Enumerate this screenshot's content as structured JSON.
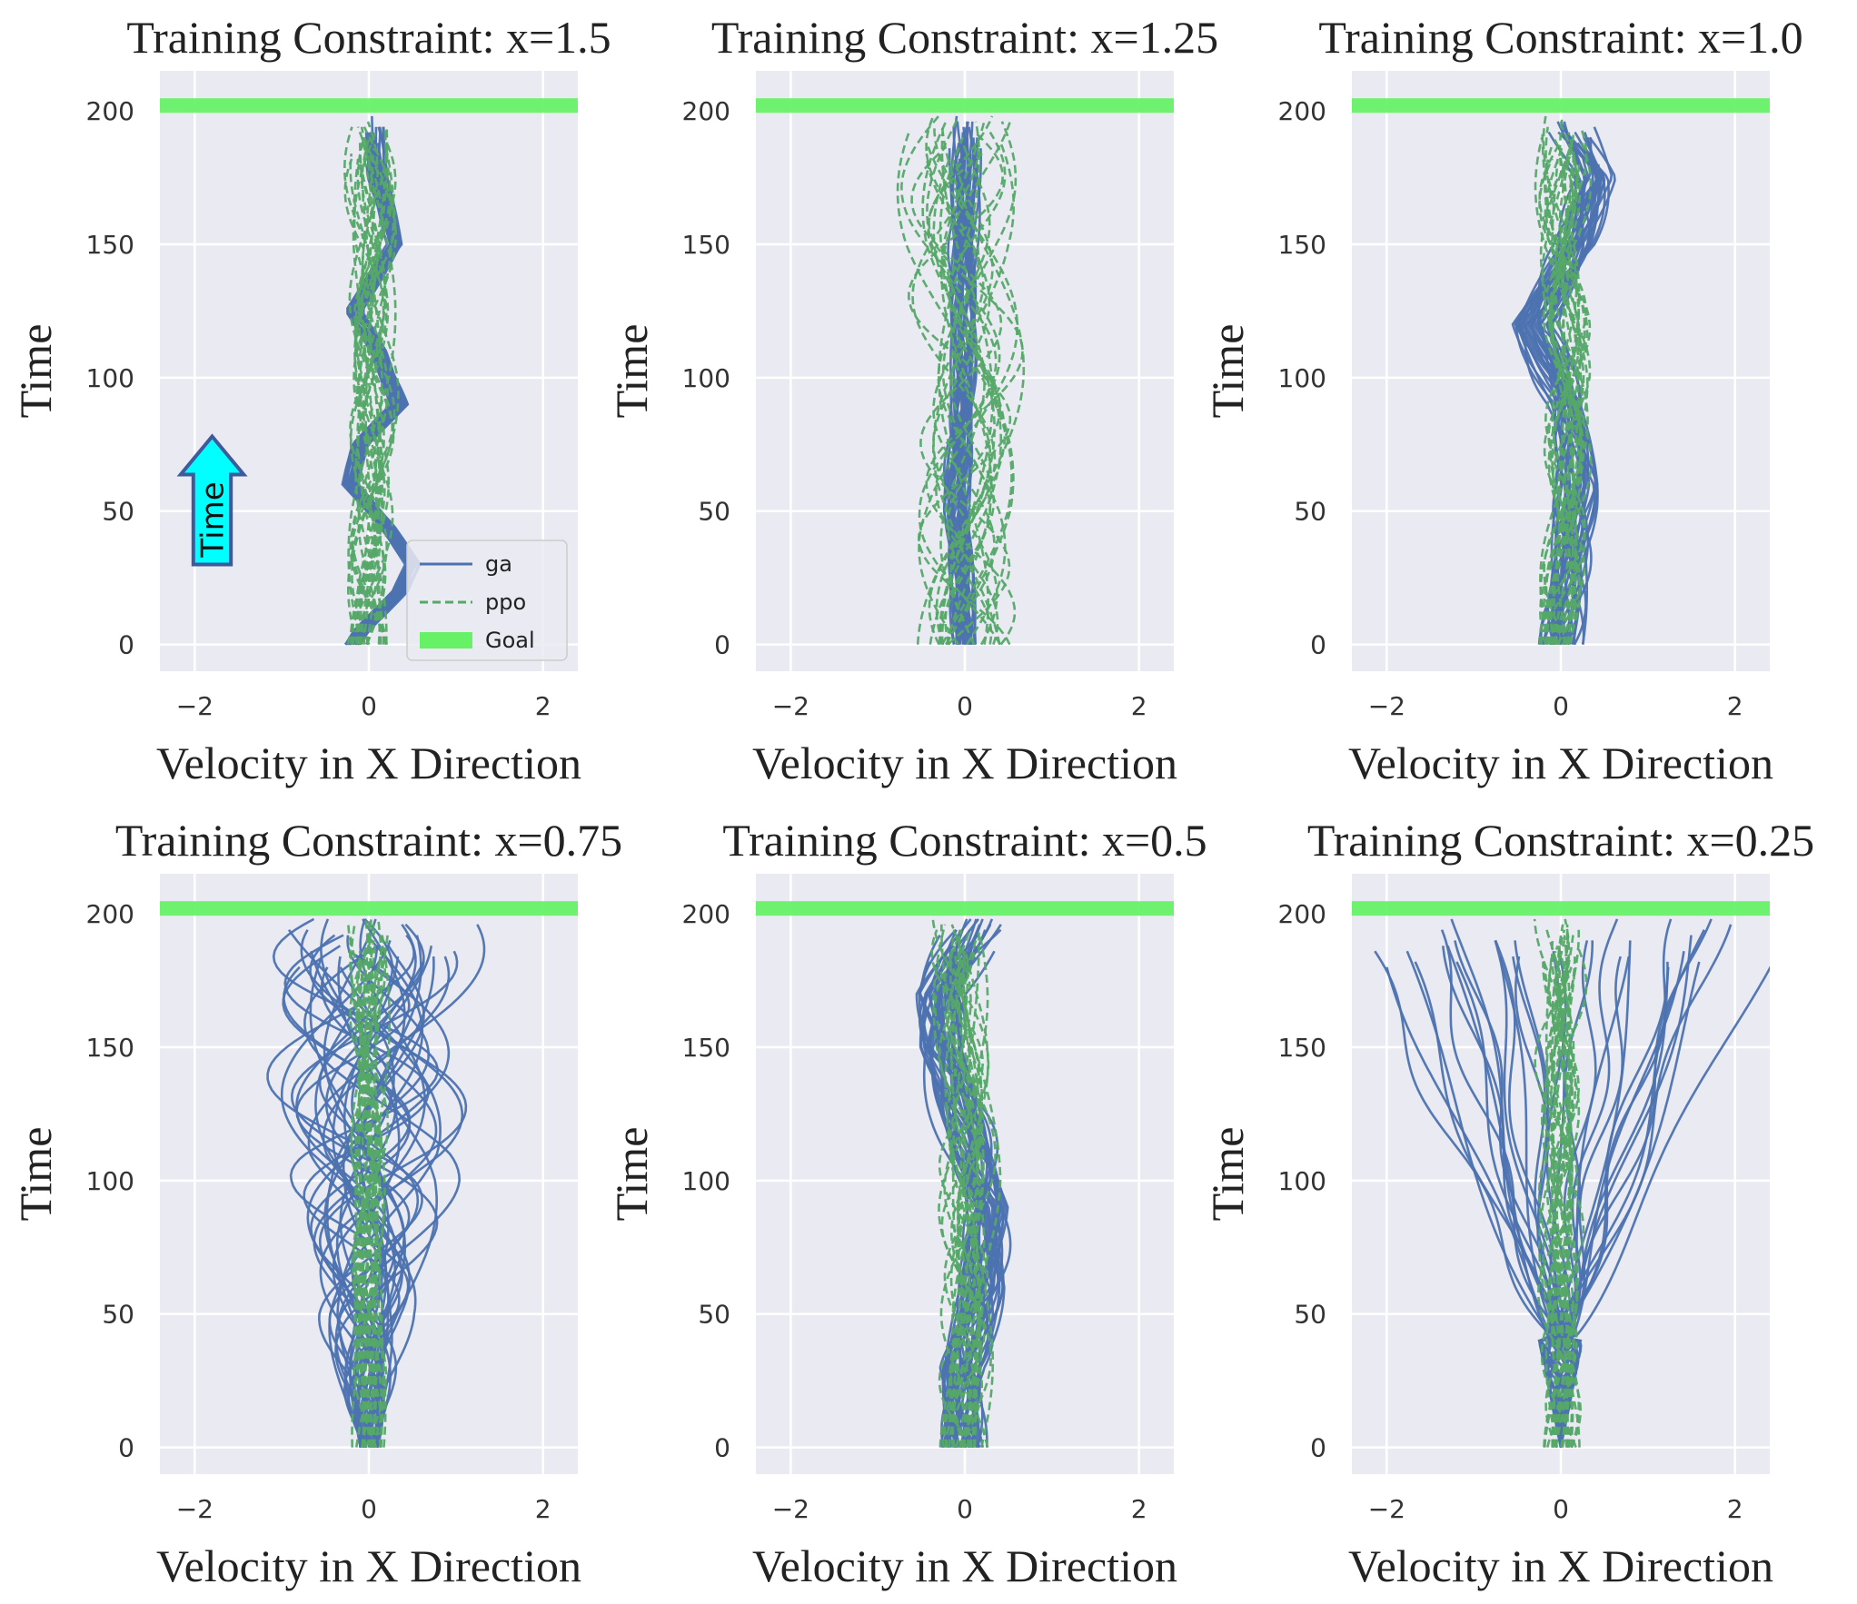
{
  "chart_data": [
    {
      "type": "line",
      "title": "Training Constraint: x=1.5",
      "xlabel": "Velocity in X Direction",
      "ylabel": "Time",
      "xlim": [
        -2.4,
        2.4
      ],
      "ylim": [
        -10,
        215
      ],
      "xticks": [
        -2,
        0,
        2
      ],
      "yticks": [
        0,
        50,
        100,
        150,
        200
      ],
      "grid": true,
      "goal_y": 202,
      "legend": {
        "position": "lower-right",
        "entries": [
          "ga",
          "ppo",
          "Goal"
        ]
      },
      "annotation": {
        "text": "Time",
        "shape": "up-arrow",
        "y_range": [
          30,
          78
        ],
        "x_range": [
          -2.1,
          -1.5
        ]
      },
      "series": [
        {
          "name": "ga",
          "style": "solid",
          "color": "#4c72b0",
          "count": 30,
          "spread": 0.08,
          "center": [
            [
              0,
              -0.2
            ],
            [
              5,
              -0.1
            ],
            [
              20,
              0.35
            ],
            [
              30,
              0.5
            ],
            [
              45,
              0.2
            ],
            [
              60,
              -0.2
            ],
            [
              75,
              -0.1
            ],
            [
              90,
              0.35
            ],
            [
              110,
              0.1
            ],
            [
              125,
              -0.2
            ],
            [
              150,
              0.3
            ],
            [
              175,
              0.1
            ],
            [
              200,
              0.05
            ]
          ]
        },
        {
          "name": "ppo",
          "style": "dashed",
          "color": "#55a868",
          "count": 25,
          "spread": 0.2,
          "center": [
            [
              0,
              0.0
            ],
            [
              50,
              0.0
            ],
            [
              100,
              0.05
            ],
            [
              150,
              0.0
            ],
            [
              200,
              0.0
            ]
          ]
        },
        {
          "name": "Goal",
          "style": "band",
          "color": "#67f167"
        }
      ]
    },
    {
      "type": "line",
      "title": "Training Constraint: x=1.25",
      "xlabel": "Velocity in X Direction",
      "ylabel": "Time",
      "xlim": [
        -2.4,
        2.4
      ],
      "ylim": [
        -10,
        215
      ],
      "xticks": [
        -2,
        0,
        2
      ],
      "yticks": [
        0,
        50,
        100,
        150,
        200
      ],
      "grid": true,
      "goal_y": 202,
      "series": [
        {
          "name": "ga",
          "style": "solid",
          "color": "#4c72b0",
          "count": 30,
          "spread": 0.12,
          "center": [
            [
              0,
              0.0
            ],
            [
              50,
              -0.1
            ],
            [
              100,
              0.0
            ],
            [
              150,
              0.0
            ],
            [
              200,
              0.0
            ]
          ]
        },
        {
          "name": "ppo",
          "style": "dashed",
          "color": "#55a868",
          "count": 25,
          "spread": 0.45,
          "center": [
            [
              0,
              0.0
            ],
            [
              50,
              0.05
            ],
            [
              100,
              0.0
            ],
            [
              150,
              -0.05
            ],
            [
              200,
              0.0
            ]
          ]
        },
        {
          "name": "Goal",
          "style": "band",
          "color": "#67f167"
        }
      ]
    },
    {
      "type": "line",
      "title": "Training Constraint: x=1.0",
      "xlabel": "Velocity in X Direction",
      "ylabel": "Time",
      "xlim": [
        -2.4,
        2.4
      ],
      "ylim": [
        -10,
        215
      ],
      "xticks": [
        -2,
        0,
        2
      ],
      "yticks": [
        0,
        50,
        100,
        150,
        200
      ],
      "grid": true,
      "goal_y": 202,
      "series": [
        {
          "name": "ga",
          "style": "solid",
          "color": "#4c72b0",
          "count": 30,
          "spread": 0.2,
          "center": [
            [
              0,
              0.0
            ],
            [
              30,
              0.1
            ],
            [
              60,
              0.2
            ],
            [
              90,
              0.1
            ],
            [
              120,
              -0.3
            ],
            [
              150,
              0.2
            ],
            [
              175,
              0.4
            ],
            [
              200,
              0.0
            ]
          ]
        },
        {
          "name": "ppo",
          "style": "dashed",
          "color": "#55a868",
          "count": 25,
          "spread": 0.2,
          "center": [
            [
              0,
              0.0
            ],
            [
              50,
              0.05
            ],
            [
              100,
              0.1
            ],
            [
              150,
              0.05
            ],
            [
              200,
              0.0
            ]
          ]
        },
        {
          "name": "Goal",
          "style": "band",
          "color": "#67f167"
        }
      ]
    },
    {
      "type": "line",
      "title": "Training Constraint: x=0.75",
      "xlabel": "Velocity in X Direction",
      "ylabel": "Time",
      "xlim": [
        -2.4,
        2.4
      ],
      "ylim": [
        -10,
        215
      ],
      "xticks": [
        -2,
        0,
        2
      ],
      "yticks": [
        0,
        50,
        100,
        150,
        200
      ],
      "grid": true,
      "goal_y": 202,
      "series": [
        {
          "name": "ga",
          "style": "solid",
          "color": "#4c72b0",
          "count": 36,
          "spread": 0.75,
          "spread_start": 0.1,
          "center": [
            [
              0,
              0.0
            ],
            [
              50,
              -0.05
            ],
            [
              100,
              0.05
            ],
            [
              150,
              0.0
            ],
            [
              200,
              0.0
            ]
          ]
        },
        {
          "name": "ppo",
          "style": "dashed",
          "color": "#55a868",
          "count": 25,
          "spread": 0.15,
          "center": [
            [
              0,
              0.0
            ],
            [
              50,
              0.0
            ],
            [
              100,
              0.0
            ],
            [
              150,
              0.0
            ],
            [
              200,
              0.0
            ]
          ]
        },
        {
          "name": "Goal",
          "style": "band",
          "color": "#67f167"
        }
      ]
    },
    {
      "type": "line",
      "title": "Training Constraint: x=0.5",
      "xlabel": "Velocity in X Direction",
      "ylabel": "Time",
      "xlim": [
        -2.4,
        2.4
      ],
      "ylim": [
        -10,
        215
      ],
      "xticks": [
        -2,
        0,
        2
      ],
      "yticks": [
        0,
        50,
        100,
        150,
        200
      ],
      "grid": true,
      "goal_y": 202,
      "series": [
        {
          "name": "ga",
          "style": "solid",
          "color": "#4c72b0",
          "count": 36,
          "spread": 0.22,
          "center": [
            [
              0,
              0.0
            ],
            [
              30,
              -0.05
            ],
            [
              60,
              0.2
            ],
            [
              90,
              0.3
            ],
            [
              120,
              0.0
            ],
            [
              150,
              -0.3
            ],
            [
              170,
              -0.3
            ],
            [
              200,
              0.2
            ]
          ]
        },
        {
          "name": "ppo",
          "style": "dashed",
          "color": "#55a868",
          "count": 25,
          "spread": 0.25,
          "center": [
            [
              0,
              0.0
            ],
            [
              50,
              0.0
            ],
            [
              100,
              0.05
            ],
            [
              150,
              0.0
            ],
            [
              200,
              0.0
            ]
          ]
        },
        {
          "name": "Goal",
          "style": "band",
          "color": "#67f167"
        }
      ]
    },
    {
      "type": "line",
      "title": "Training Constraint: x=0.25",
      "xlabel": "Velocity in X Direction",
      "ylabel": "Time",
      "xlim": [
        -2.4,
        2.4
      ],
      "ylim": [
        -10,
        215
      ],
      "xticks": [
        -2,
        0,
        2
      ],
      "yticks": [
        0,
        50,
        100,
        150,
        200
      ],
      "grid": true,
      "goal_y": 202,
      "series": [
        {
          "name": "ga",
          "style": "solid",
          "color": "#4c72b0",
          "count": 34,
          "fan_start": 40,
          "fan_spread": 2.6,
          "center": [
            [
              0,
              0.0
            ],
            [
              200,
              0.0
            ]
          ]
        },
        {
          "name": "ppo",
          "style": "dashed",
          "color": "#55a868",
          "count": 25,
          "spread": 0.18,
          "center": [
            [
              0,
              0.0
            ],
            [
              50,
              0.0
            ],
            [
              100,
              0.0
            ],
            [
              150,
              0.0
            ],
            [
              200,
              0.0
            ]
          ]
        },
        {
          "name": "Goal",
          "style": "band",
          "color": "#67f167"
        }
      ]
    }
  ]
}
